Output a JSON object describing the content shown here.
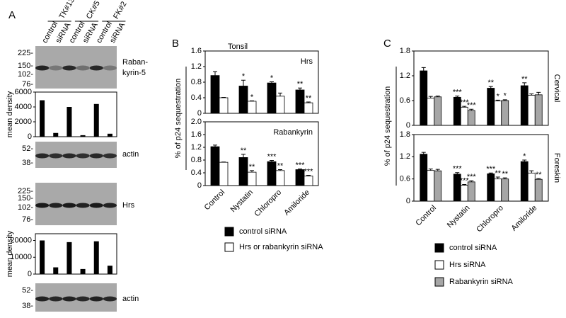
{
  "panel_labels": [
    "A",
    "B",
    "C"
  ],
  "blots": {
    "lanes": [
      "control",
      "siRNA",
      "control",
      "siRNA",
      "control",
      "siRNA"
    ],
    "groups": [
      "TK#13",
      "CK#5",
      "FK#2"
    ],
    "rabankyrin": {
      "markers": [
        "225-",
        "150-",
        "102-",
        "76-"
      ],
      "label": [
        "Raban-",
        "kyrin-5"
      ]
    },
    "actin1": {
      "markers": [
        "52-",
        "38-"
      ],
      "label": "actin"
    },
    "hrs": {
      "markers": [
        "225-",
        "150-",
        "102-",
        "76-"
      ],
      "label": "Hrs"
    },
    "actin2": {
      "markers": [
        "52-",
        "38-"
      ],
      "label": "actin"
    }
  },
  "chart_data": [
    {
      "type": "bar",
      "ylabel": "mean density",
      "values": [
        4900,
        500,
        4000,
        200,
        4400,
        400
      ],
      "color": "#000000",
      "ylim": [
        0,
        6000
      ],
      "yticks": [
        0,
        2000,
        4000,
        6000
      ]
    },
    {
      "type": "bar",
      "ylabel": "mean density",
      "values": [
        20000,
        4000,
        19000,
        3000,
        19500,
        5000
      ],
      "color": "#000000",
      "ylim": [
        0,
        24000
      ],
      "yticks": [
        0,
        10000,
        20000
      ]
    },
    {
      "type": "grouped_bar",
      "title": "Tonsil",
      "ylabel": "% of p24 sequestration",
      "categories": [
        "Control",
        "Nystatin",
        "Chloropro",
        "Amiloride"
      ],
      "series": [
        {
          "name": "control siRNA",
          "color": "#000000"
        },
        {
          "name": "Hrs or rabankyrin siRNA",
          "color": "#ffffff"
        }
      ],
      "panels": [
        {
          "subtitle": "Hrs",
          "ylim": [
            0,
            1.6
          ],
          "yticks": [
            0,
            0.4,
            0.8,
            1.2,
            1.6
          ],
          "data": [
            {
              "values": [
                0.97,
                0.7,
                0.78,
                0.6
              ],
              "errors": [
                0.1,
                0.15,
                0.03,
                0.05
              ],
              "stars": [
                null,
                "*",
                "*",
                "**"
              ]
            },
            {
              "values": [
                0.4,
                0.31,
                0.44,
                0.27
              ],
              "errors": [
                0.01,
                0.01,
                0.08,
                0.02
              ],
              "stars": [
                null,
                "*",
                null,
                "**"
              ]
            }
          ]
        },
        {
          "subtitle": "Rabankyrin",
          "ylim": [
            0,
            2
          ],
          "yticks": [
            0,
            0.4,
            0.8,
            1.2,
            1.6,
            {
              "value": 2,
              "label": "2.0"
            }
          ],
          "data": [
            {
              "values": [
                1.22,
                0.88,
                0.75,
                0.5
              ],
              "errors": [
                0.05,
                0.1,
                0.04,
                0.02
              ],
              "stars": [
                null,
                "**",
                "***",
                "***"
              ]
            },
            {
              "values": [
                0.73,
                0.42,
                0.47,
                0.3
              ],
              "errors": [
                0.01,
                0.05,
                0.03,
                0.02
              ],
              "stars": [
                null,
                "**",
                "**",
                "***"
              ]
            }
          ]
        }
      ]
    },
    {
      "type": "grouped_bar",
      "ylabel": "% of p24 sequestration",
      "categories": [
        "Control",
        "Nystatin",
        "Chloropro",
        "Amiloride"
      ],
      "series": [
        {
          "name": "control siRNA",
          "color": "#000000"
        },
        {
          "name": "Hrs siRNA",
          "color": "#ffffff"
        },
        {
          "name": "Rabankyrin siRNA",
          "color": "#a6a6a6"
        }
      ],
      "panels": [
        {
          "subtitle": "Cervical",
          "ylim": [
            0,
            1.8
          ],
          "yticks": [
            0,
            0.6,
            1.2,
            1.8
          ],
          "data": [
            {
              "values": [
                1.32,
                0.68,
                0.9,
                0.96
              ],
              "errors": [
                0.08,
                0.03,
                0.04,
                0.07
              ],
              "stars": [
                null,
                "***",
                "**",
                "**"
              ]
            },
            {
              "values": [
                0.66,
                0.44,
                0.59,
                0.73
              ],
              "errors": [
                0.04,
                0.02,
                0.02,
                0.03
              ],
              "stars": [
                null,
                "***",
                "*",
                null
              ]
            },
            {
              "values": [
                0.69,
                0.36,
                0.6,
                0.74
              ],
              "errors": [
                0.02,
                0.03,
                0.02,
                0.06
              ],
              "stars": [
                null,
                "***",
                "*",
                null
              ]
            }
          ]
        },
        {
          "subtitle": "Foreskin",
          "ylim": [
            0,
            1.8
          ],
          "yticks": [
            0,
            0.6,
            1.2,
            1.8
          ],
          "data": [
            {
              "values": [
                1.27,
                0.73,
                0.74,
                1.07
              ],
              "errors": [
                0.05,
                0.04,
                0.02,
                0.04
              ],
              "stars": [
                null,
                "***",
                "***",
                "*"
              ]
            },
            {
              "values": [
                0.83,
                0.43,
                0.6,
                0.76
              ],
              "errors": [
                0.04,
                0.02,
                0.05,
                0.06
              ],
              "stars": [
                null,
                "***",
                "**",
                null
              ]
            },
            {
              "values": [
                0.82,
                0.52,
                0.6,
                0.59
              ],
              "errors": [
                0.04,
                0.03,
                0.03,
                0.02
              ],
              "stars": [
                null,
                "***",
                "**",
                "**"
              ]
            }
          ]
        }
      ]
    }
  ]
}
